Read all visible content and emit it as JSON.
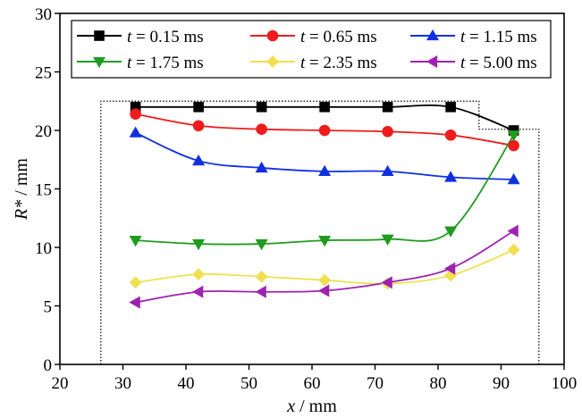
{
  "chart_data": {
    "type": "line",
    "xlabel": "x / mm",
    "ylabel": "R* / mm",
    "xlim": [
      20,
      100
    ],
    "ylim": [
      0,
      30
    ],
    "xticks": [
      20,
      30,
      40,
      50,
      60,
      70,
      80,
      90,
      100
    ],
    "yticks": [
      0,
      5,
      10,
      15,
      20,
      25,
      30
    ],
    "grid": false,
    "legend_position": "top, inside plot, 3 columns",
    "outline": {
      "style": "dotted",
      "points": [
        [
          26.5,
          0
        ],
        [
          26.5,
          22.5
        ],
        [
          86.5,
          22.5
        ],
        [
          86.5,
          20.1
        ],
        [
          96,
          20.1
        ],
        [
          96,
          0
        ]
      ]
    },
    "series": [
      {
        "name": "t = 0.15 ms",
        "color": "#000000",
        "marker": "square",
        "x": [
          32,
          42,
          52,
          62,
          72,
          82,
          92
        ],
        "y": [
          22.0,
          22.0,
          22.0,
          22.0,
          22.0,
          22.0,
          20.0
        ]
      },
      {
        "name": "t = 0.65 ms",
        "color": "#ee1c1c",
        "marker": "circle",
        "x": [
          32,
          42,
          52,
          62,
          72,
          82,
          92
        ],
        "y": [
          21.4,
          20.4,
          20.1,
          20.0,
          19.9,
          19.6,
          18.7
        ]
      },
      {
        "name": "t = 1.15 ms",
        "color": "#1030e0",
        "marker": "triangle-up",
        "x": [
          32,
          42,
          52,
          62,
          72,
          82,
          92
        ],
        "y": [
          19.8,
          17.4,
          16.8,
          16.5,
          16.5,
          16.0,
          15.8
        ]
      },
      {
        "name": "t = 1.75 ms",
        "color": "#1f9c1f",
        "marker": "triangle-down",
        "x": [
          32,
          42,
          52,
          62,
          72,
          82,
          92
        ],
        "y": [
          10.6,
          10.3,
          10.3,
          10.6,
          10.7,
          11.4,
          19.6
        ]
      },
      {
        "name": "t = 2.35 ms",
        "color": "#f0e050",
        "marker": "diamond",
        "x": [
          32,
          42,
          52,
          62,
          72,
          82,
          92
        ],
        "y": [
          7.0,
          7.7,
          7.5,
          7.2,
          6.9,
          7.6,
          9.8
        ]
      },
      {
        "name": "t = 5.00 ms",
        "color": "#9e22b0",
        "marker": "triangle-left",
        "x": [
          32,
          42,
          52,
          62,
          72,
          82,
          92
        ],
        "y": [
          5.3,
          6.2,
          6.2,
          6.3,
          7.0,
          8.2,
          11.4
        ]
      }
    ]
  }
}
